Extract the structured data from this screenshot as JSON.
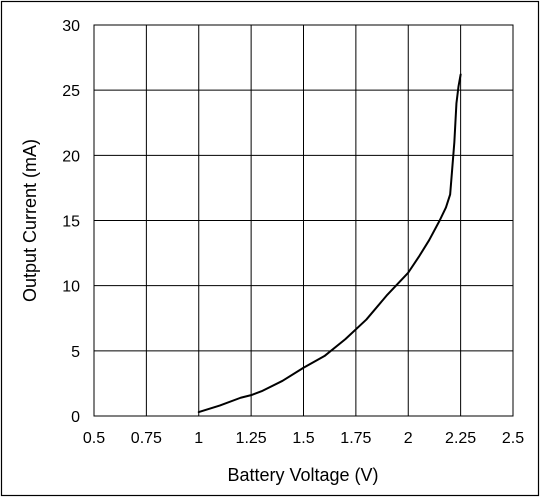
{
  "chart_data": {
    "type": "line",
    "title": "",
    "xlabel": "Battery Voltage (V)",
    "ylabel": "Output Current (mA)",
    "xlim": [
      0.5,
      2.5
    ],
    "ylim": [
      0,
      30
    ],
    "x_ticks": [
      0.5,
      0.75,
      1,
      1.25,
      1.5,
      1.75,
      2,
      2.25,
      2.5
    ],
    "x_tick_labels": [
      "0.5",
      "0.75",
      "1",
      "1.25",
      "1.5",
      "1.75",
      "2",
      "2.25",
      "2.5"
    ],
    "y_ticks": [
      0,
      5,
      10,
      15,
      20,
      25,
      30
    ],
    "y_tick_labels": [
      "0",
      "5",
      "10",
      "15",
      "20",
      "25",
      "30"
    ],
    "grid": true,
    "legend": "none",
    "series": [
      {
        "x": [
          1.0,
          1.1,
          1.2,
          1.25,
          1.3,
          1.4,
          1.5,
          1.6,
          1.7,
          1.8,
          1.9,
          2.0,
          2.05,
          2.1,
          2.15,
          2.18,
          2.2,
          2.21,
          2.22,
          2.225,
          2.23,
          2.24,
          2.25
        ],
        "y": [
          0.3,
          0.8,
          1.4,
          1.6,
          1.9,
          2.7,
          3.7,
          4.6,
          5.9,
          7.4,
          9.3,
          11.0,
          12.2,
          13.5,
          15.0,
          16.0,
          17.0,
          19.0,
          21.0,
          22.5,
          24.0,
          25.3,
          26.2
        ],
        "color": "#000000"
      }
    ]
  }
}
